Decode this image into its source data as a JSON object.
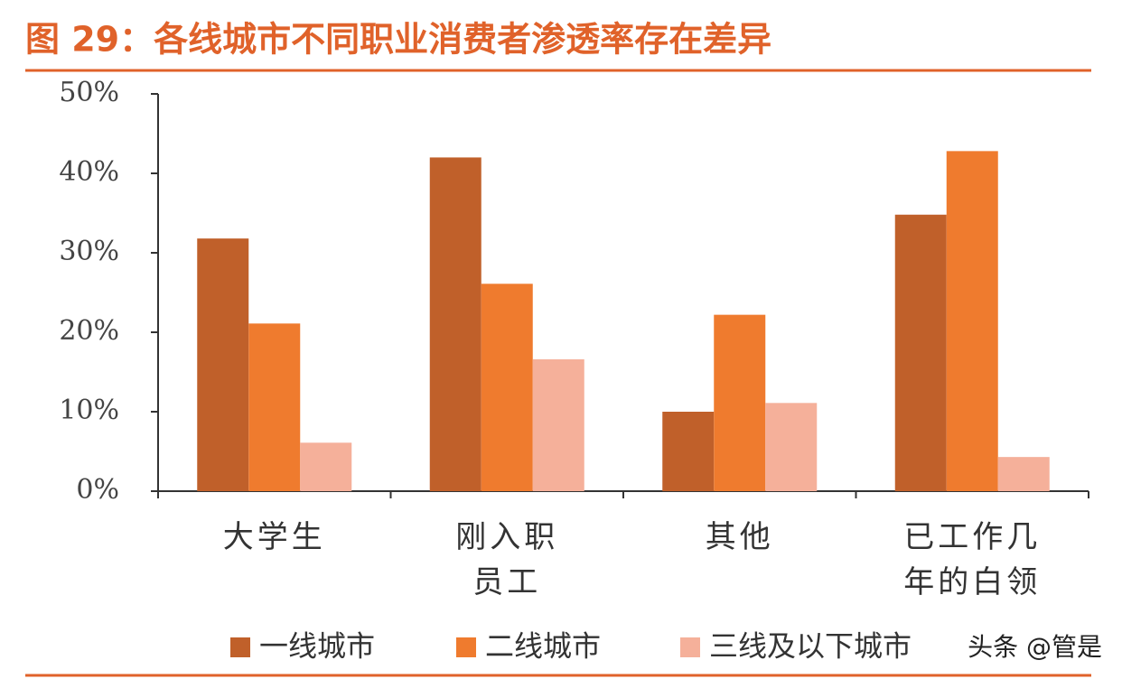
{
  "chart_data": {
    "type": "bar",
    "title": "图 29：各线城市不同职业消费者渗透率存在差异",
    "categories": [
      "大学生",
      "刚入职员工",
      "其他",
      "已工作几年的白领"
    ],
    "series": [
      {
        "name": "一线城市",
        "color": "#c0602a",
        "values": [
          31.8,
          42.0,
          10.0,
          34.8
        ]
      },
      {
        "name": "二线城市",
        "color": "#ef7b2e",
        "values": [
          21.1,
          26.1,
          22.2,
          42.8
        ]
      },
      {
        "name": "三线及以下城市",
        "color": "#f5b09a",
        "values": [
          6.1,
          16.6,
          11.1,
          4.3
        ]
      }
    ],
    "ylim": [
      0,
      50
    ],
    "yticks": [
      {
        "value": 0,
        "label": "0%"
      },
      {
        "value": 10,
        "label": "10%"
      },
      {
        "value": 20,
        "label": "20%"
      },
      {
        "value": 30,
        "label": "30%"
      },
      {
        "value": 40,
        "label": "40%"
      },
      {
        "value": 50,
        "label": "50%"
      }
    ],
    "grid": false,
    "legend": "bottom",
    "watermark": "头条 @管是"
  }
}
